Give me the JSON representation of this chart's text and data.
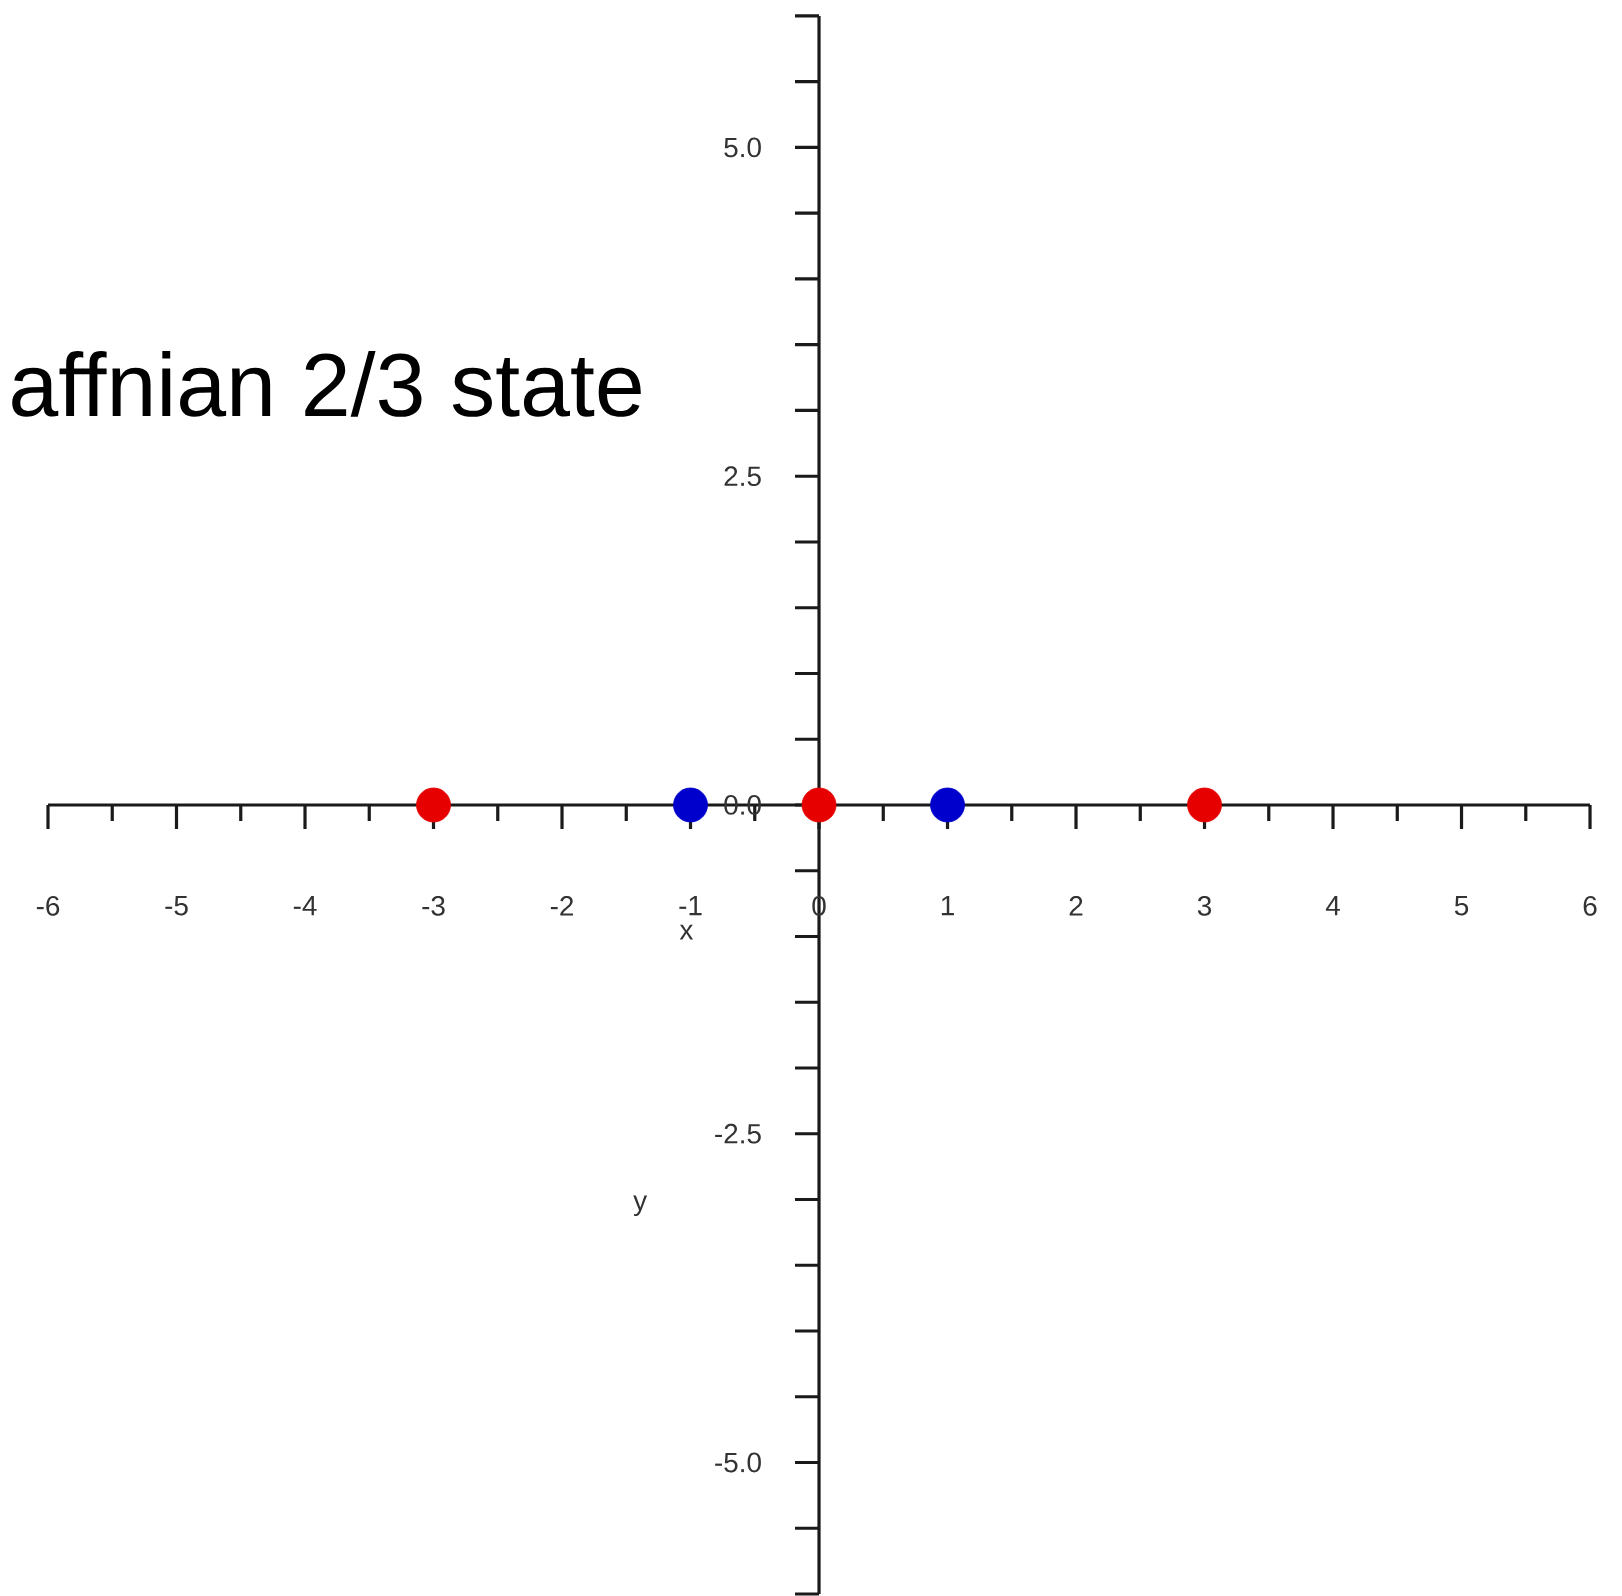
{
  "chart_data": {
    "type": "scatter",
    "title": "affnian 2/3 state",
    "xlabel": "x",
    "ylabel": "y",
    "xlim": [
      -6,
      6
    ],
    "ylim": [
      -6,
      6
    ],
    "xticks": [
      -6,
      {
        "value": -5.5,
        "label": null
      },
      -5,
      {
        "value": -4.5,
        "label": null
      },
      -4,
      {
        "value": -3.5,
        "label": null
      },
      -3,
      {
        "value": -2.5,
        "label": null
      },
      -2,
      {
        "value": -1.5,
        "label": null
      },
      -1,
      {
        "value": -0.5,
        "label": null
      },
      0,
      {
        "value": 0.5,
        "label": null
      },
      1,
      {
        "value": 1.5,
        "label": null
      },
      2,
      {
        "value": 2.5,
        "label": null
      },
      3,
      {
        "value": 3.5,
        "label": null
      },
      4,
      {
        "value": 4.5,
        "label": null
      },
      5,
      {
        "value": 5.5,
        "label": null
      },
      6
    ],
    "yticks": [
      {
        "value": -6,
        "label": null
      },
      {
        "value": -5.5,
        "label": null
      },
      {
        "value": -5,
        "label": "-5.0"
      },
      {
        "value": -4.5,
        "label": null
      },
      {
        "value": -4,
        "label": null
      },
      {
        "value": -3.5,
        "label": null
      },
      {
        "value": -3,
        "label": null
      },
      -2.5,
      {
        "value": -2,
        "label": null
      },
      {
        "value": -1.5,
        "label": null
      },
      {
        "value": -1,
        "label": null
      },
      {
        "value": -0.5,
        "label": null
      },
      {
        "value": 0,
        "label": "0.0"
      },
      {
        "value": 0.5,
        "label": null
      },
      {
        "value": 1,
        "label": null
      },
      {
        "value": 1.5,
        "label": null
      },
      {
        "value": 2,
        "label": null
      },
      2.5,
      {
        "value": 3,
        "label": null
      },
      {
        "value": 3.5,
        "label": null
      },
      {
        "value": 4,
        "label": null
      },
      {
        "value": 4.5,
        "label": null
      },
      {
        "value": 5,
        "label": "5.0"
      },
      {
        "value": 5.5,
        "label": null
      },
      {
        "value": 6,
        "label": null
      }
    ],
    "series": [
      {
        "color": "#e60000",
        "x": [
          -3,
          0,
          3
        ],
        "values": [
          0,
          0,
          0
        ]
      },
      {
        "color": "#0000cc",
        "x": [
          -1,
          1
        ],
        "values": [
          0,
          0
        ]
      }
    ]
  }
}
